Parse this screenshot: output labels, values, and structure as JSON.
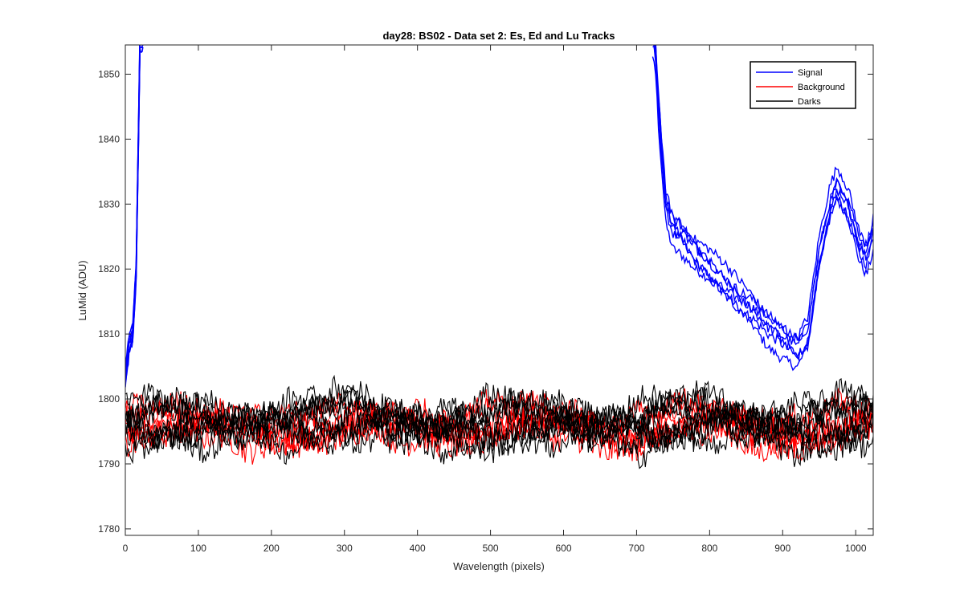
{
  "chart_data": {
    "type": "line",
    "title": "day28: BS02 - Data set 2: Es, Ed and Lu Tracks",
    "xlabel": "Wavelength (pixels)",
    "ylabel": "LuMid (ADU)",
    "xlim": [
      0,
      1024
    ],
    "ylim": [
      1779,
      1854.5
    ],
    "x_ticks": [
      0,
      100,
      200,
      300,
      400,
      500,
      600,
      700,
      800,
      900,
      1000
    ],
    "y_ticks": [
      1780,
      1790,
      1800,
      1810,
      1820,
      1830,
      1840,
      1850
    ],
    "grid": false,
    "legend_position": "top-right",
    "legend": [
      "Signal",
      "Background",
      "Darks"
    ],
    "colors": {
      "Signal": "#0000ff",
      "Background": "#ff0000",
      "Darks": "#000000",
      "axes": "#262626"
    },
    "series": [
      {
        "name": "Signal",
        "traces": 6,
        "color": "#0000ff",
        "values": [
          [
            0,
            1803
          ],
          [
            5,
            1808
          ],
          [
            10,
            1810
          ],
          [
            15,
            1820
          ],
          [
            20,
            1855
          ],
          [
            725,
            1855
          ],
          [
            730,
            1845
          ],
          [
            740,
            1830
          ],
          [
            750,
            1826
          ],
          [
            760,
            1825
          ],
          [
            780,
            1822
          ],
          [
            800,
            1820
          ],
          [
            820,
            1818
          ],
          [
            840,
            1816
          ],
          [
            860,
            1814
          ],
          [
            880,
            1811
          ],
          [
            900,
            1809
          ],
          [
            920,
            1807
          ],
          [
            935,
            1810
          ],
          [
            950,
            1822
          ],
          [
            965,
            1830
          ],
          [
            975,
            1833
          ],
          [
            990,
            1830
          ],
          [
            1005,
            1824
          ],
          [
            1015,
            1822
          ],
          [
            1024,
            1826
          ]
        ]
      },
      {
        "name": "Background",
        "traces": 6,
        "color": "#ff0000",
        "values": [
          [
            0,
            1796
          ],
          [
            100,
            1795.5
          ],
          [
            200,
            1796
          ],
          [
            300,
            1795.5
          ],
          [
            400,
            1796.5
          ],
          [
            500,
            1796
          ],
          [
            600,
            1796
          ],
          [
            700,
            1795.5
          ],
          [
            800,
            1796
          ],
          [
            900,
            1795.5
          ],
          [
            1024,
            1796
          ]
        ]
      },
      {
        "name": "Darks",
        "traces": 8,
        "color": "#000000",
        "values": [
          [
            0,
            1796.5
          ],
          [
            100,
            1796
          ],
          [
            200,
            1796.5
          ],
          [
            300,
            1797
          ],
          [
            400,
            1796
          ],
          [
            500,
            1796
          ],
          [
            600,
            1796.5
          ],
          [
            700,
            1796
          ],
          [
            800,
            1797
          ],
          [
            900,
            1796
          ],
          [
            1024,
            1796.5
          ]
        ]
      }
    ]
  }
}
